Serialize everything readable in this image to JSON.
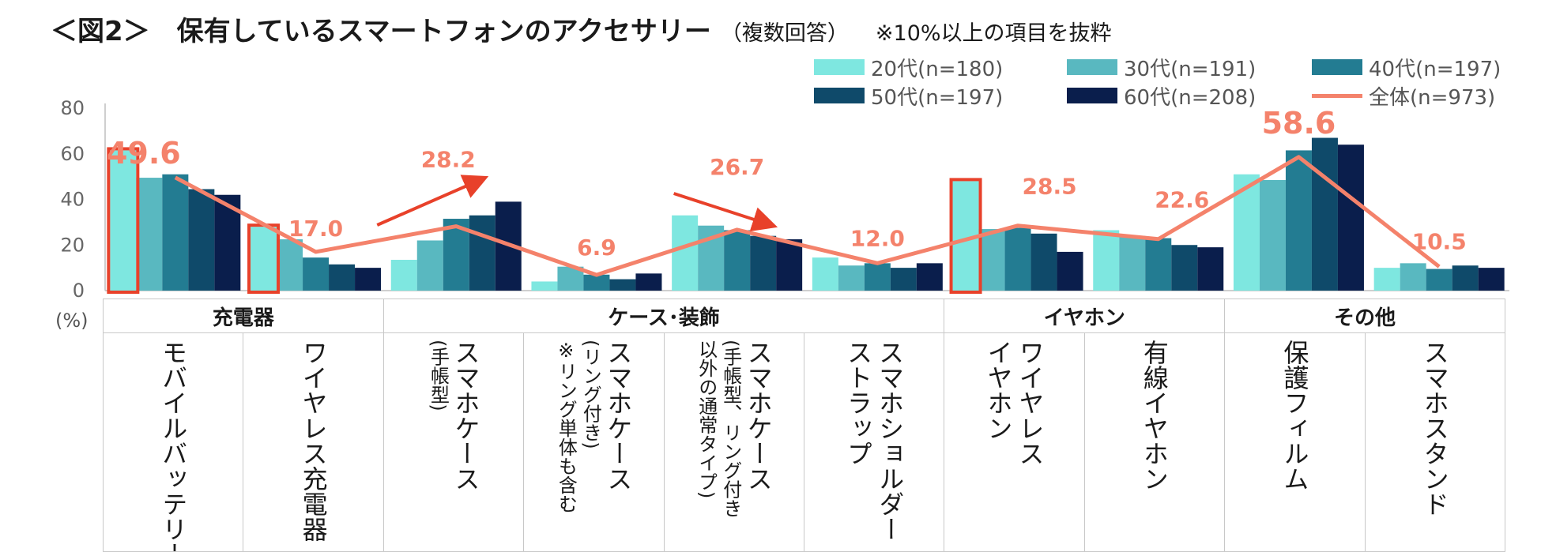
{
  "title": {
    "main": "＜図2＞　保有しているスマートフォンのアクセサリー",
    "sub": "（複数回答）",
    "note": "※10%以上の項目を抜粋"
  },
  "unit_label": "(%)",
  "colors": {
    "s20": "#7ee7e0",
    "s30": "#59b8c0",
    "s40": "#237c92",
    "s50": "#0f4a6a",
    "s60": "#0a1e4c",
    "total_line": "#f4826b",
    "highlight": "#e8412a",
    "arrow": "#e8412a"
  },
  "groups": [
    {
      "label": "充電器"
    },
    {
      "label": "ケース･装飾"
    },
    {
      "label": "イヤホン"
    },
    {
      "label": "その他"
    }
  ],
  "categories": [
    {
      "main": "モバイルバッテリー",
      "sub": []
    },
    {
      "main": "ワイヤレス充電器",
      "sub": []
    },
    {
      "main": "スマホケース",
      "sub": [
        "(手帳型)"
      ]
    },
    {
      "main": "スマホケース",
      "sub": [
        "(リング付き)",
        "※リング単体も含む"
      ]
    },
    {
      "main": "スマホケース",
      "sub": [
        "(手帳型、リング付き",
        "以外の通常タイプ)"
      ]
    },
    {
      "main": "スマホショルダー・",
      "sub": [
        "ストラップ"
      ]
    },
    {
      "main": "ワイヤレス",
      "sub": [
        "イヤホン"
      ]
    },
    {
      "main": "有線イヤホン",
      "sub": []
    },
    {
      "main": "保護フィルム",
      "sub": []
    },
    {
      "main": "スマホスタンド",
      "sub": []
    }
  ],
  "chart_data": {
    "type": "bar",
    "title": "保有しているスマートフォンのアクセサリー",
    "ylabel": "(%)",
    "ylim": [
      0,
      80
    ],
    "yticks": [
      0,
      20,
      40,
      60,
      80
    ],
    "categories": [
      "モバイルバッテリー",
      "ワイヤレス充電器",
      "スマホケース(手帳型)",
      "スマホケース(リング付き)",
      "スマホケース(通常タイプ)",
      "スマホショルダー・ストラップ",
      "ワイヤレスイヤホン",
      "有線イヤホン",
      "保護フィルム",
      "スマホスタンド"
    ],
    "series": [
      {
        "name": "20代(n=180)",
        "color_key": "s20",
        "values": [
          61.5,
          28.0,
          13.5,
          4.0,
          33.0,
          14.5,
          48.0,
          26.5,
          51.0,
          10.0
        ]
      },
      {
        "name": "30代(n=191)",
        "color_key": "s30",
        "values": [
          49.5,
          22.5,
          22.0,
          10.5,
          28.5,
          11.0,
          27.0,
          24.0,
          48.5,
          12.0
        ]
      },
      {
        "name": "40代(n=197)",
        "color_key": "s40",
        "values": [
          51.0,
          14.5,
          31.5,
          7.0,
          26.5,
          12.0,
          27.5,
          23.0,
          61.5,
          9.5
        ]
      },
      {
        "name": "50代(n=197)",
        "color_key": "s50",
        "values": [
          44.5,
          11.5,
          33.0,
          5.0,
          24.0,
          10.0,
          25.0,
          20.0,
          67.0,
          11.0
        ]
      },
      {
        "name": "60代(n=208)",
        "color_key": "s60",
        "values": [
          42.0,
          10.0,
          39.0,
          7.5,
          22.5,
          12.0,
          17.0,
          19.0,
          64.0,
          10.0
        ]
      }
    ],
    "total": {
      "name": "全体(n=973)",
      "values": [
        49.6,
        17.0,
        28.2,
        6.9,
        26.7,
        12.0,
        28.5,
        22.6,
        58.6,
        10.5
      ],
      "labels": [
        "49.6",
        "17.0",
        "28.2",
        "6.9",
        "26.7",
        "12.0",
        "28.5",
        "22.6",
        "58.6",
        "10.5"
      ]
    },
    "highlighted_bars": [
      {
        "category": 0,
        "series": 0
      },
      {
        "category": 1,
        "series": 0
      },
      {
        "category": 6,
        "series": 0
      }
    ],
    "trend_arrows": [
      {
        "category": 2,
        "direction": "up"
      },
      {
        "category": 4,
        "direction": "down"
      }
    ],
    "legend_position": "top-right"
  }
}
